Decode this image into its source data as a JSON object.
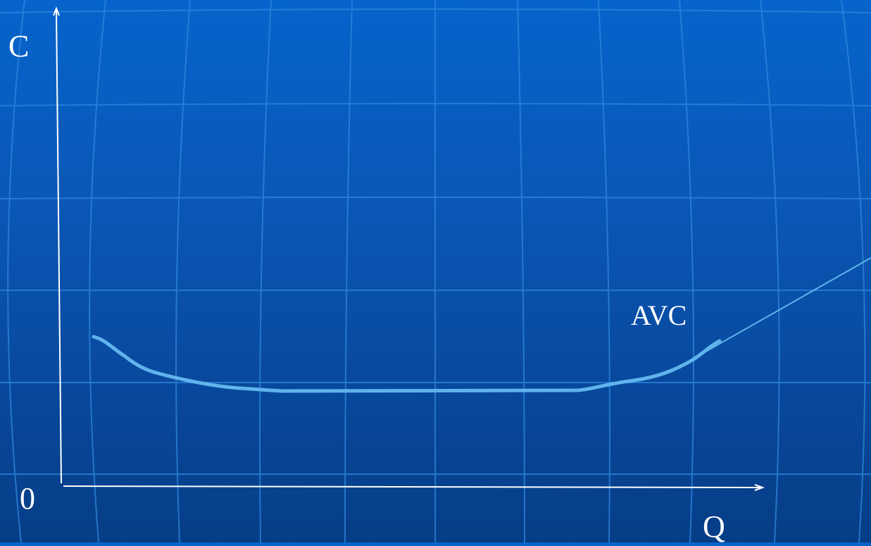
{
  "labels": {
    "y_axis": "C",
    "x_axis": "Q",
    "origin": "0",
    "curve": "AVC"
  },
  "colors": {
    "background_top": "#0664cc",
    "background_bottom": "#063d86",
    "grid": "#2f86dc",
    "axis": "#ffffff",
    "curve": "#5fb4ec"
  }
}
